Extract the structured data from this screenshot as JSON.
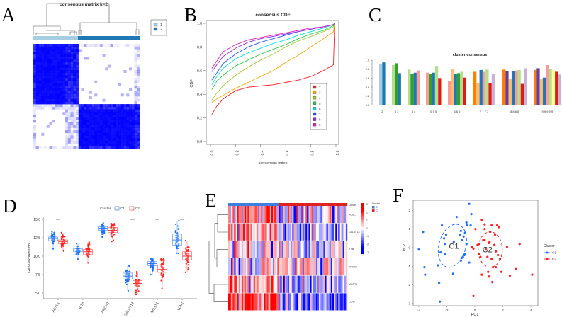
{
  "panels": {
    "A": "A",
    "B": "B",
    "C": "C",
    "D": "D",
    "E": "E",
    "F": "F"
  },
  "chart_data": [
    {
      "panel": "A",
      "type": "heatmap",
      "title": "consensus matrix k=2",
      "legend": [
        "1",
        "2"
      ],
      "legend_colors": [
        "#A6CEE3",
        "#1F78B4"
      ],
      "cluster_fraction": [
        0.42,
        0.58
      ],
      "cell_color": "#0000FF"
    },
    {
      "panel": "B",
      "type": "line",
      "title": "consensus CDF",
      "xlabel": "consensus index",
      "ylabel": "CDF",
      "xlim": [
        0,
        1
      ],
      "ylim": [
        0,
        1
      ],
      "xticks": [
        "0.0",
        "0.2",
        "0.4",
        "0.6",
        "0.8",
        "1.0"
      ],
      "yticks": [
        "0.0",
        "0.2",
        "0.4",
        "0.6",
        "0.8",
        "1.0"
      ],
      "x": [
        0.01,
        0.05,
        0.1,
        0.2,
        0.3,
        0.4,
        0.5,
        0.6,
        0.7,
        0.8,
        0.9,
        0.98,
        0.99
      ],
      "series": [
        {
          "name": "2",
          "color": "#FF2020",
          "values": [
            0.23,
            0.3,
            0.36,
            0.43,
            0.46,
            0.47,
            0.48,
            0.5,
            0.52,
            0.55,
            0.6,
            0.65,
            1.0
          ]
        },
        {
          "name": "3",
          "color": "#FFA500",
          "values": [
            0.33,
            0.36,
            0.39,
            0.45,
            0.5,
            0.55,
            0.6,
            0.67,
            0.73,
            0.8,
            0.87,
            0.93,
            1.0
          ]
        },
        {
          "name": "4",
          "color": "#9ACD32",
          "values": [
            0.35,
            0.41,
            0.47,
            0.56,
            0.63,
            0.69,
            0.74,
            0.8,
            0.85,
            0.89,
            0.93,
            0.97,
            1.0
          ]
        },
        {
          "name": "5",
          "color": "#22CC44",
          "values": [
            0.44,
            0.51,
            0.56,
            0.64,
            0.69,
            0.74,
            0.78,
            0.82,
            0.87,
            0.91,
            0.94,
            0.98,
            1.0
          ]
        },
        {
          "name": "6",
          "color": "#00E0EE",
          "values": [
            0.48,
            0.55,
            0.62,
            0.7,
            0.75,
            0.79,
            0.83,
            0.86,
            0.9,
            0.93,
            0.96,
            0.99,
            1.0
          ]
        },
        {
          "name": "7",
          "color": "#1E50FF",
          "values": [
            0.52,
            0.58,
            0.66,
            0.74,
            0.8,
            0.84,
            0.87,
            0.9,
            0.93,
            0.95,
            0.97,
            0.99,
            1.0
          ]
        },
        {
          "name": "8",
          "color": "#8B2BE2",
          "values": [
            0.59,
            0.65,
            0.72,
            0.79,
            0.84,
            0.87,
            0.89,
            0.91,
            0.93,
            0.95,
            0.97,
            0.99,
            1.0
          ]
        },
        {
          "name": "9",
          "color": "#E020C0",
          "values": [
            0.62,
            0.68,
            0.76,
            0.82,
            0.86,
            0.88,
            0.9,
            0.92,
            0.94,
            0.96,
            0.97,
            0.99,
            1.0
          ]
        }
      ],
      "legend_position": "bottom-right"
    },
    {
      "panel": "C",
      "type": "bar",
      "title": "cluster-consensus",
      "ylim": [
        0,
        1
      ],
      "yticks": [
        "0.0",
        "0.2",
        "0.4",
        "0.6",
        "0.8",
        "1.0"
      ],
      "groups": [
        {
          "k": "2",
          "label": "2",
          "values": [
            0.92,
            0.95
          ],
          "colors": [
            "#A6CEE3",
            "#1F78B4"
          ]
        },
        {
          "k": "3",
          "label": "3   3",
          "values": [
            0.89,
            0.93,
            0.71
          ],
          "colors": [
            "#B2DF8A",
            "#33A02C",
            "#1F78B4"
          ]
        },
        {
          "k": "4",
          "label": "4   4",
          "values": [
            0.79,
            0.7,
            0.72,
            0.77
          ],
          "colors": [
            "#B2DF8A",
            "#33A02C",
            "#1F78B4",
            "#FB9A99"
          ]
        },
        {
          "k": "5",
          "label": "5   5   5",
          "values": [
            0.72,
            0.7,
            0.72,
            0.87,
            0.6
          ],
          "colors": [
            "#FB9A99",
            "#33A02C",
            "#1F78B4",
            "#B2DF8A",
            "#E31A1C"
          ]
        },
        {
          "k": "6",
          "label": "6   6   6",
          "values": [
            0.54,
            0.8,
            0.69,
            0.71,
            0.74,
            0.61
          ],
          "colors": [
            "#FB9A99",
            "#FDBF6F",
            "#1F78B4",
            "#33A02C",
            "#B2DF8A",
            "#E31A1C"
          ]
        },
        {
          "k": "7",
          "label": "7   7   7   7",
          "values": [
            0.74,
            0.49,
            0.78,
            0.74,
            0.79,
            0.48,
            0.7
          ],
          "colors": [
            "#FF7F00",
            "#FDBF6F",
            "#1F78B4",
            "#FB9A99",
            "#B2DF8A",
            "#E31A1C",
            "#CAB2D6"
          ]
        },
        {
          "k": "8",
          "label": "8   8   8   8",
          "values": [
            0.79,
            0.76,
            0.59,
            0.76,
            0.77,
            0.78,
            0.47,
            0.82
          ],
          "colors": [
            "#FF7F00",
            "#6A3D9A",
            "#FDBF6F",
            "#1F78B4",
            "#FB9A99",
            "#B2DF8A",
            "#E31A1C",
            "#CAB2D6"
          ]
        },
        {
          "k": "9",
          "label": "9   9   9   9   9",
          "values": [
            0.78,
            0.82,
            0.59,
            0.61,
            0.89,
            0.81,
            0.78,
            0.74,
            0.68
          ],
          "colors": [
            "#FF7F00",
            "#6A3D9A",
            "#FDBF6F",
            "#1F78B4",
            "#FB9A99",
            "#B2DF8A",
            "#FFFF99",
            "#E31A1C",
            "#CAB2D6"
          ]
        }
      ]
    },
    {
      "panel": "D",
      "type": "boxplot",
      "ylabel": "Gene expression",
      "ylim": [
        5,
        15
      ],
      "yticks": [
        "5.0",
        "7.5",
        "10.0",
        "12.5",
        "15.0"
      ],
      "legend_title": "Cluster",
      "legend": [
        "C1",
        "C2"
      ],
      "colors": [
        "#1E6FFF",
        "#FF2020"
      ],
      "genes": [
        "ACSL1",
        "IL1B",
        "PROK2",
        "GALNT14",
        "MGST1",
        "LCN2"
      ],
      "significance": [
        "***",
        "",
        "",
        "***",
        "***",
        "***"
      ],
      "boxes": [
        {
          "C1": [
            11.0,
            12.1,
            12.4,
            12.6,
            13.3
          ],
          "C2": [
            10.7,
            11.7,
            12.0,
            12.2,
            13.2
          ]
        },
        {
          "C1": [
            9.6,
            10.6,
            10.8,
            11.0,
            11.7
          ],
          "C2": [
            9.1,
            10.2,
            10.6,
            10.9,
            11.9
          ]
        },
        {
          "C1": [
            12.6,
            13.5,
            13.8,
            14.0,
            14.5
          ],
          "C2": [
            12.0,
            13.2,
            13.5,
            13.9,
            14.4
          ]
        },
        {
          "C1": [
            5.3,
            6.9,
            7.3,
            7.7,
            8.7
          ],
          "C2": [
            4.8,
            5.8,
            6.3,
            6.7,
            7.9
          ]
        },
        {
          "C1": [
            7.5,
            8.7,
            9.0,
            9.3,
            9.6
          ],
          "C2": [
            5.6,
            7.8,
            8.2,
            8.8,
            9.6
          ]
        },
        {
          "C1": [
            10.4,
            11.5,
            12.2,
            13.0,
            14.8
          ],
          "C2": [
            7.8,
            9.5,
            10.0,
            10.6,
            12.1
          ]
        }
      ]
    },
    {
      "panel": "E",
      "type": "heatmap",
      "genes": [
        "ACSL1",
        "GALNT14",
        "IL1B",
        "PROK2",
        "MGST1",
        "LCN2"
      ],
      "annotation_label": "Cluster",
      "legend_title": "Cluster",
      "legend": [
        "C1",
        "C2"
      ],
      "legend_colors": [
        "#3C7EE0",
        "#E02020"
      ],
      "colorbar_ticks": [
        "3",
        "2",
        "1",
        "0",
        "-1",
        "-2",
        "-3"
      ],
      "cluster_fraction": [
        0.42,
        0.58
      ]
    },
    {
      "panel": "F",
      "type": "scatter",
      "xlabel": "PC1",
      "ylabel": "PC2",
      "xlim": [
        -4.4,
        4.5
      ],
      "ylim": [
        -3.1,
        2.55
      ],
      "xticks": [
        "-4",
        "-2",
        "0",
        "2",
        "4"
      ],
      "yticks": [
        "2",
        "1",
        "0",
        "-1",
        "-2",
        "-3"
      ],
      "legend_title": "Cluster",
      "series": [
        {
          "name": "C1",
          "color": "#1E6FFF",
          "label": "C1",
          "ellipse": {
            "cx": -1.6,
            "cy": 0.1
          },
          "points": [
            [
              -4.0,
              -0.1
            ],
            [
              -3.7,
              0.85
            ],
            [
              -3.6,
              -1.05
            ],
            [
              -3.55,
              -1.45
            ],
            [
              -2.65,
              -0.95
            ],
            [
              -2.55,
              -1.9
            ],
            [
              -2.5,
              -2.9
            ],
            [
              -2.45,
              -0.25
            ],
            [
              -2.35,
              1.2
            ],
            [
              -2.2,
              0.5
            ],
            [
              -2.15,
              0.2
            ],
            [
              -2.1,
              -0.35
            ],
            [
              -2.05,
              0.7
            ],
            [
              -1.3,
              1.65
            ],
            [
              -1.5,
              0.3
            ],
            [
              -1.55,
              -1.4
            ],
            [
              -1.0,
              0.9
            ],
            [
              -1.05,
              0.7
            ],
            [
              -0.8,
              0.6
            ],
            [
              -0.9,
              0.4
            ],
            [
              -0.7,
              0.8
            ],
            [
              -0.6,
              1.35
            ],
            [
              -0.55,
              1.2
            ],
            [
              -0.6,
              0.2
            ],
            [
              -0.75,
              -0.4
            ],
            [
              -0.85,
              -0.5
            ],
            [
              -0.95,
              -0.55
            ],
            [
              -1.0,
              -0.7
            ],
            [
              -0.7,
              -0.35
            ],
            [
              -0.4,
              -0.8
            ],
            [
              -0.3,
              1.2
            ],
            [
              -0.4,
              2.35
            ],
            [
              -0.25,
              1.8
            ]
          ]
        },
        {
          "name": "C2",
          "color": "#FF2020",
          "label": "C2",
          "ellipse": {
            "cx": 1.1,
            "cy": -0.1
          },
          "points": [
            [
              -0.1,
              -2.6
            ],
            [
              -0.2,
              0.05
            ],
            [
              -0.1,
              -0.05
            ],
            [
              0.05,
              1.0
            ],
            [
              0.2,
              0.15
            ],
            [
              0.3,
              0.2
            ],
            [
              0.3,
              -0.35
            ],
            [
              0.4,
              -0.5
            ],
            [
              0.5,
              1.5
            ],
            [
              0.5,
              -1.45
            ],
            [
              0.6,
              0.4
            ],
            [
              0.7,
              1.25
            ],
            [
              0.7,
              1.0
            ],
            [
              0.7,
              0.4
            ],
            [
              0.8,
              -0.1
            ],
            [
              0.9,
              -0.5
            ],
            [
              0.95,
              -1.3
            ],
            [
              1.0,
              0.25
            ],
            [
              1.0,
              -1.55
            ],
            [
              1.05,
              0.3
            ],
            [
              1.1,
              0.85
            ],
            [
              1.2,
              1.2
            ],
            [
              1.2,
              -0.6
            ],
            [
              1.25,
              -1.85
            ],
            [
              1.3,
              -1.05
            ],
            [
              1.4,
              0.15
            ],
            [
              1.45,
              0.7
            ],
            [
              1.5,
              -0.2
            ],
            [
              1.6,
              1.2
            ],
            [
              1.7,
              1.1
            ],
            [
              1.65,
              -0.4
            ],
            [
              1.5,
              -1.05
            ],
            [
              1.9,
              -1.3
            ],
            [
              2.3,
              0.05
            ],
            [
              2.5,
              -1.5
            ],
            [
              2.95,
              -1.15
            ],
            [
              3.2,
              0.2
            ],
            [
              4.1,
              -1.45
            ],
            [
              1.8,
              -0.6
            ]
          ]
        }
      ]
    }
  ]
}
